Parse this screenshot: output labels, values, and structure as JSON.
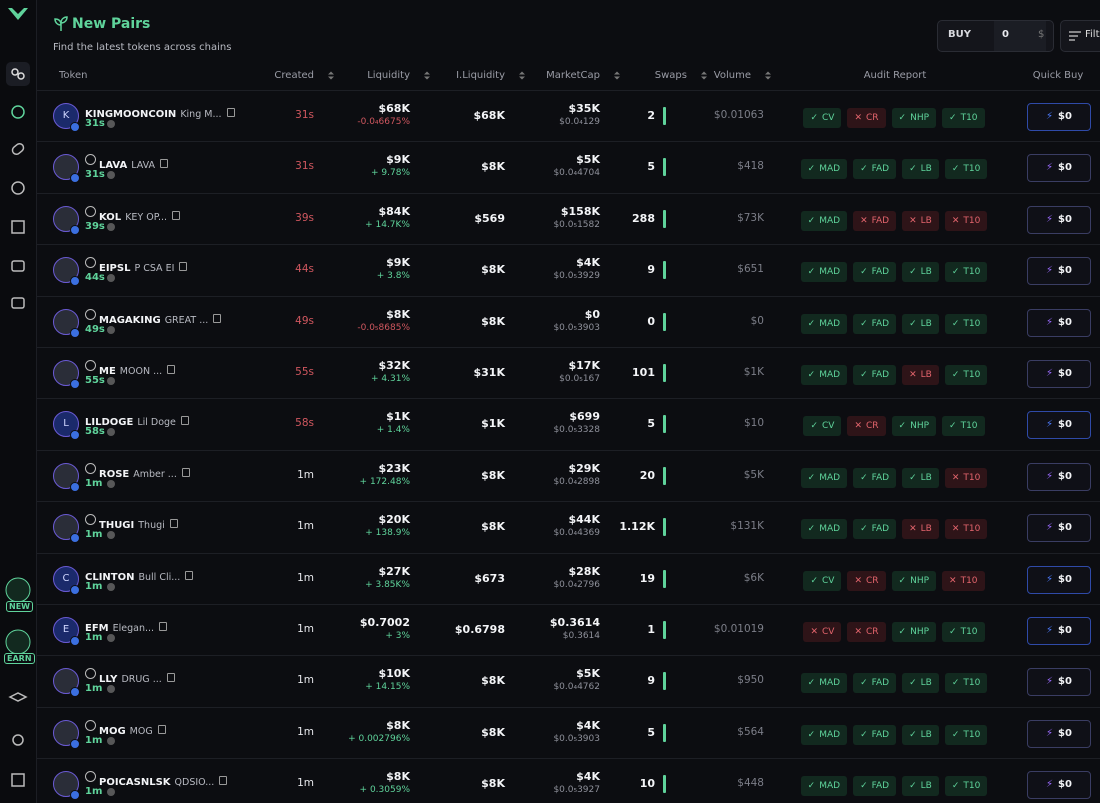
{
  "header": {
    "title": "New Pairs",
    "subtitle": "Find the latest tokens across chains",
    "buy_label": "BUY",
    "amount": "0",
    "currency": "$",
    "filter": "Filters"
  },
  "sidebar": {
    "badges": [
      "NEW",
      "EARN"
    ]
  },
  "table": {
    "columns": [
      "Token",
      "Created",
      "Liquidity",
      "I.Liquidity",
      "MarketCap",
      "Swaps",
      "Volume",
      "Audit Report",
      "Quick Buy"
    ],
    "rows": [
      {
        "avatar": "K",
        "symbol": "KINGMOONCOIN",
        "name": "King M...",
        "age": "31s",
        "created": "31s",
        "liquidity": "$68K",
        "liquidity_change": "-0.0₄6675%",
        "initial_liquidity": "$68K",
        "market_cap": "$35K",
        "price": "$0.0₄129",
        "swaps": "2",
        "volume": "$0.01063",
        "audit": [
          {
            "label": "CV",
            "passed": true
          },
          {
            "label": "CR",
            "passed": false
          },
          {
            "label": "NHP",
            "passed": true
          },
          {
            "label": "T10",
            "passed": true
          }
        ],
        "buy": "$0"
      },
      {
        "symbol": "LAVA",
        "name": "LAVA",
        "age": "31s",
        "created": "31s",
        "liquidity": "$9K",
        "liquidity_change": "+ 9.78%",
        "initial_liquidity": "$8K",
        "market_cap": "$5K",
        "price": "$0.0₄4704",
        "swaps": "5",
        "volume": "$418",
        "audit": [
          {
            "label": "MAD",
            "passed": true
          },
          {
            "label": "FAD",
            "passed": true
          },
          {
            "label": "LB",
            "passed": true
          },
          {
            "label": "T10",
            "passed": true
          }
        ],
        "buy": "$0"
      },
      {
        "symbol": "KOL",
        "name": "KEY OP...",
        "age": "39s",
        "created": "39s",
        "liquidity": "$84K",
        "liquidity_change": "+ 14.7K%",
        "initial_liquidity": "$569",
        "market_cap": "$158K",
        "price": "$0.0₅1582",
        "swaps": "288",
        "volume": "$73K",
        "audit": [
          {
            "label": "MAD",
            "passed": true
          },
          {
            "label": "FAD",
            "passed": false
          },
          {
            "label": "LB",
            "passed": false
          },
          {
            "label": "T10",
            "passed": false
          }
        ],
        "buy": "$0"
      },
      {
        "symbol": "EIPSL",
        "name": "P CSA EI",
        "age": "44s",
        "created": "44s",
        "liquidity": "$9K",
        "liquidity_change": "+ 3.8%",
        "initial_liquidity": "$8K",
        "market_cap": "$4K",
        "price": "$0.0₅3929",
        "swaps": "9",
        "volume": "$651",
        "audit": [
          {
            "label": "MAD",
            "passed": true
          },
          {
            "label": "FAD",
            "passed": true
          },
          {
            "label": "LB",
            "passed": true
          },
          {
            "label": "T10",
            "passed": true
          }
        ],
        "buy": "$0"
      },
      {
        "symbol": "MAGAKING",
        "name": "GREAT ...",
        "age": "49s",
        "created": "49s",
        "liquidity": "$8K",
        "liquidity_change": "-0.0₅8685%",
        "initial_liquidity": "$8K",
        "market_cap": "$0",
        "price": "$0.0₅3903",
        "swaps": "0",
        "volume": "$0",
        "audit": [
          {
            "label": "MAD",
            "passed": true
          },
          {
            "label": "FAD",
            "passed": true
          },
          {
            "label": "LB",
            "passed": true
          },
          {
            "label": "T10",
            "passed": true
          }
        ],
        "buy": "$0"
      },
      {
        "symbol": "ME",
        "name": "MOON ...",
        "age": "55s",
        "created": "55s",
        "liquidity": "$32K",
        "liquidity_change": "+ 4.31%",
        "initial_liquidity": "$31K",
        "market_cap": "$17K",
        "price": "$0.0₅167",
        "swaps": "101",
        "volume": "$1K",
        "audit": [
          {
            "label": "MAD",
            "passed": true
          },
          {
            "label": "FAD",
            "passed": true
          },
          {
            "label": "LB",
            "passed": false
          },
          {
            "label": "T10",
            "passed": true
          }
        ],
        "buy": "$0"
      },
      {
        "avatar": "L",
        "symbol": "LILDOGE",
        "name": "Lil Doge",
        "age": "58s",
        "created": "58s",
        "liquidity": "$1K",
        "liquidity_change": "+ 1.4%",
        "initial_liquidity": "$1K",
        "market_cap": "$699",
        "price": "$0.0₅3328",
        "swaps": "5",
        "volume": "$10",
        "audit": [
          {
            "label": "CV",
            "passed": true
          },
          {
            "label": "CR",
            "passed": false
          },
          {
            "label": "NHP",
            "passed": true
          },
          {
            "label": "T10",
            "passed": true
          }
        ],
        "buy": "$0"
      },
      {
        "symbol": "ROSE",
        "name": "Amber ...",
        "age": "1m",
        "created": "1m",
        "liquidity": "$23K",
        "liquidity_change": "+ 172.48%",
        "initial_liquidity": "$8K",
        "market_cap": "$29K",
        "price": "$0.0₄2898",
        "swaps": "20",
        "volume": "$5K",
        "audit": [
          {
            "label": "MAD",
            "passed": true
          },
          {
            "label": "FAD",
            "passed": true
          },
          {
            "label": "LB",
            "passed": true
          },
          {
            "label": "T10",
            "passed": false
          }
        ],
        "buy": "$0"
      },
      {
        "symbol": "THUGI",
        "name": "Thugi",
        "age": "1m",
        "created": "1m",
        "liquidity": "$20K",
        "liquidity_change": "+ 138.9%",
        "initial_liquidity": "$8K",
        "market_cap": "$44K",
        "price": "$0.0₄4369",
        "swaps": "1.12K",
        "volume": "$131K",
        "audit": [
          {
            "label": "MAD",
            "passed": true
          },
          {
            "label": "FAD",
            "passed": true
          },
          {
            "label": "LB",
            "passed": false
          },
          {
            "label": "T10",
            "passed": false
          }
        ],
        "buy": "$0"
      },
      {
        "avatar": "C",
        "symbol": "CLINTON",
        "name": "Bull Cli...",
        "age": "1m",
        "created": "1m",
        "liquidity": "$27K",
        "liquidity_change": "+ 3.85K%",
        "initial_liquidity": "$673",
        "market_cap": "$28K",
        "price": "$0.0₄2796",
        "swaps": "19",
        "volume": "$6K",
        "audit": [
          {
            "label": "CV",
            "passed": true
          },
          {
            "label": "CR",
            "passed": false
          },
          {
            "label": "NHP",
            "passed": true
          },
          {
            "label": "T10",
            "passed": false
          }
        ],
        "buy": "$0"
      },
      {
        "avatar": "E",
        "symbol": "EFM",
        "name": "Elegan...",
        "age": "1m",
        "created": "1m",
        "liquidity": "$0.7002",
        "liquidity_change": "+ 3%",
        "initial_liquidity": "$0.6798",
        "market_cap": "$0.3614",
        "price": "$0.3614",
        "swaps": "1",
        "volume": "$0.01019",
        "audit": [
          {
            "label": "CV",
            "passed": false
          },
          {
            "label": "CR",
            "passed": false
          },
          {
            "label": "NHP",
            "passed": true
          },
          {
            "label": "T10",
            "passed": true
          }
        ],
        "buy": "$0"
      },
      {
        "symbol": "LLY",
        "name": "DRUG ...",
        "age": "1m",
        "created": "1m",
        "liquidity": "$10K",
        "liquidity_change": "+ 14.15%",
        "initial_liquidity": "$8K",
        "market_cap": "$5K",
        "price": "$0.0₄4762",
        "swaps": "9",
        "volume": "$950",
        "audit": [
          {
            "label": "MAD",
            "passed": true
          },
          {
            "label": "FAD",
            "passed": true
          },
          {
            "label": "LB",
            "passed": true
          },
          {
            "label": "T10",
            "passed": true
          }
        ],
        "buy": "$0"
      },
      {
        "symbol": "MOG",
        "name": "MOG",
        "age": "1m",
        "created": "1m",
        "liquidity": "$8K",
        "liquidity_change": "+ 0.002796%",
        "initial_liquidity": "$8K",
        "market_cap": "$4K",
        "price": "$0.0₅3903",
        "swaps": "5",
        "volume": "$564",
        "audit": [
          {
            "label": "MAD",
            "passed": true
          },
          {
            "label": "FAD",
            "passed": true
          },
          {
            "label": "LB",
            "passed": true
          },
          {
            "label": "T10",
            "passed": true
          }
        ],
        "buy": "$0"
      },
      {
        "symbol": "POICASNLSK",
        "name": "QDSIO...",
        "age": "1m",
        "created": "1m",
        "liquidity": "$8K",
        "liquidity_change": "+ 0.3059%",
        "initial_liquidity": "$8K",
        "market_cap": "$4K",
        "price": "$0.0₅3927",
        "swaps": "10",
        "volume": "$448",
        "audit": [
          {
            "label": "MAD",
            "passed": true
          },
          {
            "label": "FAD",
            "passed": true
          },
          {
            "label": "LB",
            "passed": true
          },
          {
            "label": "T10",
            "passed": true
          }
        ],
        "buy": "$0"
      }
    ]
  }
}
